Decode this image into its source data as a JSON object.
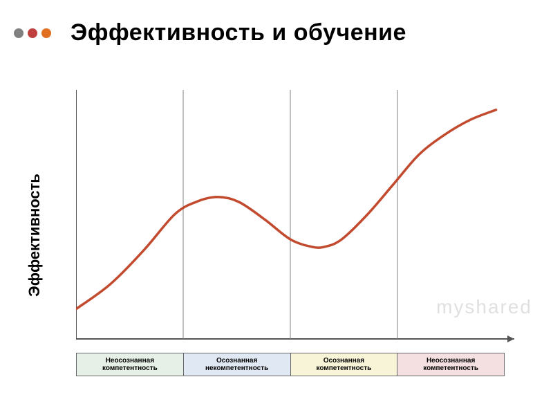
{
  "header": {
    "title": "Эффективность и обучение",
    "title_fontsize": 34,
    "dot_colors": [
      "#808080",
      "#c04040",
      "#e07020"
    ]
  },
  "chart": {
    "type": "line",
    "ylabel": "Эффективность",
    "ylabel_fontsize": 22,
    "xlim": [
      0,
      100
    ],
    "ylim": [
      0,
      100
    ],
    "curve_points": [
      [
        0,
        12
      ],
      [
        8,
        22
      ],
      [
        16,
        36
      ],
      [
        23,
        50
      ],
      [
        28,
        55
      ],
      [
        33,
        57
      ],
      [
        38,
        55
      ],
      [
        44,
        48
      ],
      [
        50,
        40
      ],
      [
        55,
        37
      ],
      [
        58,
        37
      ],
      [
        62,
        40
      ],
      [
        68,
        50
      ],
      [
        74,
        62
      ],
      [
        80,
        74
      ],
      [
        86,
        82
      ],
      [
        92,
        88
      ],
      [
        98,
        92
      ]
    ],
    "curve_color": "#c24a2e",
    "curve_width": 3.5,
    "axis_color": "#555555",
    "axis_width": 2,
    "divider_color": "#808080",
    "divider_width": 1,
    "divider_x": [
      25,
      50,
      75
    ],
    "background_color": "#ffffff",
    "stages": [
      {
        "label_line1": "Неосознанная",
        "label_line2": "компетентность",
        "fill": "#e6f0e6"
      },
      {
        "label_line1": "Осознанная",
        "label_line2": "некомпетентность",
        "fill": "#e0e8f4"
      },
      {
        "label_line1": "Осознанная",
        "label_line2": "компетентность",
        "fill": "#f8f4d8"
      },
      {
        "label_line1": "Неосознанная",
        "label_line2": "компетентность",
        "fill": "#f4e0e0"
      }
    ],
    "stage_label_fontsize": 10
  },
  "watermark": "myshared"
}
